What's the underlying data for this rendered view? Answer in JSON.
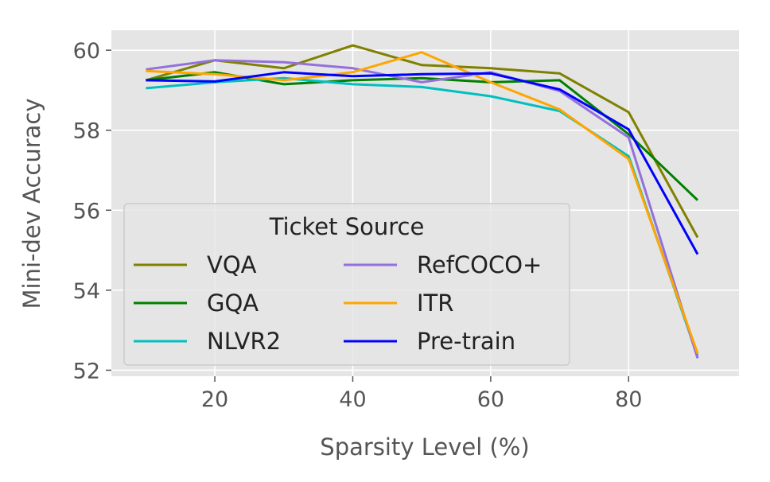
{
  "chart_data": {
    "type": "line",
    "xlabel": "Sparsity Level (%)",
    "ylabel": "Mini-dev Accuracy",
    "xlim": [
      5,
      96
    ],
    "ylim": [
      51.85,
      60.5
    ],
    "xticks": [
      20,
      40,
      60,
      80
    ],
    "yticks": [
      52,
      54,
      56,
      58,
      60
    ],
    "grid": true,
    "legend": {
      "title": "Ticket Source",
      "position": "lower-left",
      "columns": 2
    },
    "x": [
      10,
      20,
      30,
      40,
      50,
      60,
      70,
      80,
      90
    ],
    "series": [
      {
        "name": "VQA",
        "color": "#808000",
        "values": [
          59.25,
          59.75,
          59.55,
          60.12,
          59.63,
          59.55,
          59.42,
          58.45,
          55.32
        ]
      },
      {
        "name": "GQA",
        "color": "#008000",
        "values": [
          59.25,
          59.45,
          59.15,
          59.25,
          59.3,
          59.2,
          59.25,
          57.9,
          56.25
        ]
      },
      {
        "name": "NLVR2",
        "color": "#00bfbf",
        "values": [
          59.05,
          59.2,
          59.3,
          59.15,
          59.08,
          58.85,
          58.48,
          57.35,
          52.35
        ]
      },
      {
        "name": "RefCOCO+",
        "color": "#9370db",
        "values": [
          59.52,
          59.75,
          59.7,
          59.55,
          59.2,
          59.45,
          58.98,
          57.82,
          52.3
        ]
      },
      {
        "name": "ITR",
        "color": "#ffa500",
        "values": [
          59.48,
          59.4,
          59.25,
          59.45,
          59.95,
          59.2,
          58.52,
          57.28,
          52.42
        ]
      },
      {
        "name": "Pre-train",
        "color": "#0000ff",
        "values": [
          59.25,
          59.22,
          59.45,
          59.35,
          59.4,
          59.42,
          59.02,
          58.02,
          54.9
        ]
      }
    ]
  }
}
